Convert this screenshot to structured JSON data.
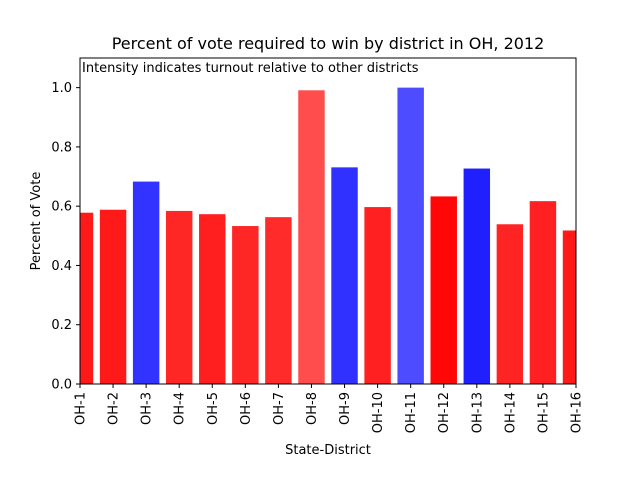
{
  "chart_data": {
    "type": "bar",
    "title": "Percent of vote required to win by district in OH, 2012",
    "annotation": "Intensity indicates turnout relative to other districts",
    "xlabel": "State-District",
    "ylabel": "Percent of Vote",
    "ylim": [
      0,
      1.1
    ],
    "yticks": [
      0.0,
      0.2,
      0.4,
      0.6,
      0.8,
      1.0
    ],
    "ytick_labels": [
      "0.0",
      "0.2",
      "0.4",
      "0.6",
      "0.8",
      "1.0"
    ],
    "grid": false,
    "categories": [
      "OH-1",
      "OH-2",
      "OH-3",
      "OH-4",
      "OH-5",
      "OH-6",
      "OH-7",
      "OH-8",
      "OH-9",
      "OH-10",
      "OH-11",
      "OH-12",
      "OH-13",
      "OH-14",
      "OH-15",
      "OH-16"
    ],
    "values": [
      0.578,
      0.588,
      0.683,
      0.584,
      0.573,
      0.533,
      0.563,
      0.991,
      0.731,
      0.597,
      1.0,
      0.633,
      0.727,
      0.539,
      0.617,
      0.518
    ],
    "bar_colors": [
      "#ff1a1a",
      "#ff1a1a",
      "#3333ff",
      "#ff2626",
      "#ff1f1f",
      "#ff2626",
      "#ff2b2b",
      "#ff4d4d",
      "#3030ff",
      "#ff2121",
      "#4d4dff",
      "#ff0707",
      "#2020ff",
      "#ff2424",
      "#ff2121",
      "#ff1a1a"
    ]
  }
}
